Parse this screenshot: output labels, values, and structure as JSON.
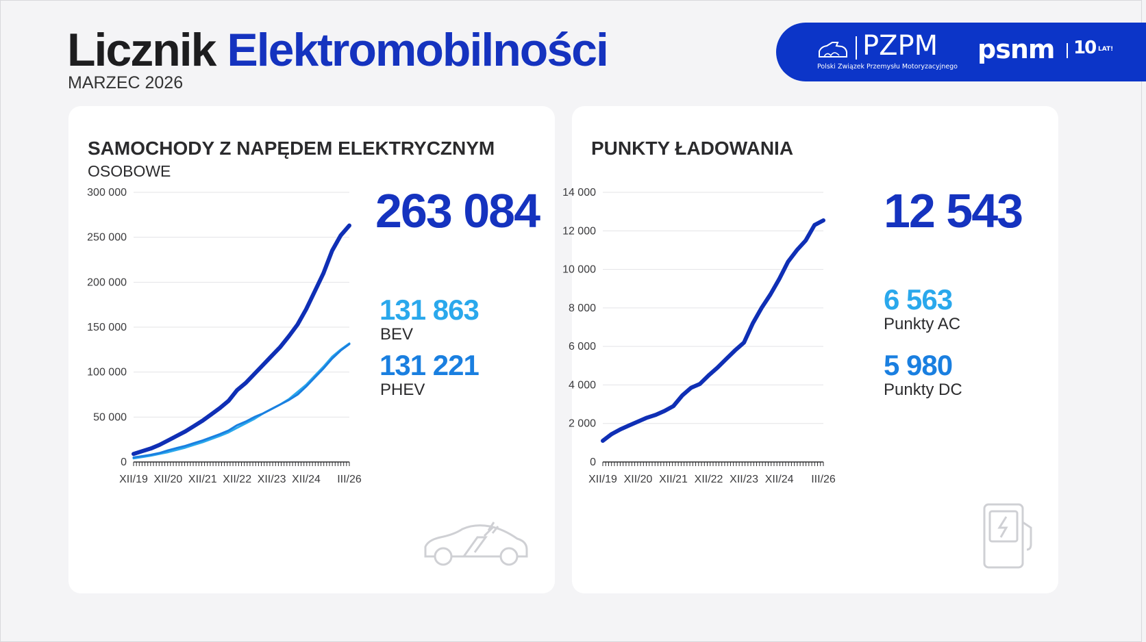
{
  "header": {
    "title_part1": "Licznik",
    "title_part2": "Elektromobilności",
    "subtitle": "MARZEC 2026"
  },
  "logos": {
    "pzpm_name": "PZPM",
    "pzpm_full": "Polski Związek Przemysłu Motoryzacyjnego",
    "psnm_name": "psnm",
    "psnm_badge": "10",
    "psnm_badge_suffix": "LAT!"
  },
  "colors": {
    "brand_blue": "#1533bf",
    "dark_blue": "#0f2fb5",
    "bev_blue": "#2aa8ec",
    "phev_blue": "#1a7fe0"
  },
  "cars_card": {
    "title": "SAMOCHODY Z NAPĘDEM ELEKTRYCZNYM",
    "subtitle": "OSOBOWE",
    "total": "263 084",
    "bev_value": "131 863",
    "bev_label": "BEV",
    "phev_value": "131 221",
    "phev_label": "PHEV",
    "icon": "electric-car-icon"
  },
  "charging_card": {
    "title": "PUNKTY ŁADOWANIA",
    "total": "12 543",
    "ac_value": "6 563",
    "ac_label": "Punkty AC",
    "dc_value": "5 980",
    "dc_label": "Punkty DC",
    "icon": "charging-station-icon"
  },
  "chart_data": [
    {
      "type": "line",
      "x": [
        "XII/19",
        "III/20",
        "VI/20",
        "IX/20",
        "XII/20",
        "III/21",
        "VI/21",
        "IX/21",
        "XII/21",
        "III/22",
        "VI/22",
        "IX/22",
        "XII/22",
        "III/23",
        "VI/23",
        "IX/23",
        "XII/23",
        "III/24",
        "VI/24",
        "IX/24",
        "XII/24",
        "III/25",
        "VI/25",
        "IX/25",
        "XII/25",
        "III/26"
      ],
      "x_tick_labels": [
        "XII/19",
        "XII/20",
        "XII/21",
        "XII/22",
        "XII/23",
        "XII/24",
        "III/26"
      ],
      "y_ticks": [
        0,
        50000,
        100000,
        150000,
        200000,
        250000,
        300000
      ],
      "y_tick_labels": [
        "0",
        "50 000",
        "100 000",
        "150 000",
        "200 000",
        "250 000",
        "300 000"
      ],
      "ylim": [
        0,
        300000
      ],
      "grid": true,
      "series": [
        {
          "key": "total",
          "color": "#0f2fb5",
          "values": [
            9000,
            12000,
            15000,
            19000,
            24000,
            29000,
            34000,
            40000,
            46000,
            53000,
            60000,
            68000,
            80000,
            88000,
            98000,
            108000,
            118000,
            128000,
            140000,
            153000,
            170000,
            190000,
            210000,
            235000,
            252000,
            263084
          ]
        },
        {
          "key": "bev",
          "color": "#2aa8ec",
          "values": [
            4000,
            5500,
            7000,
            9000,
            11000,
            13500,
            16000,
            19000,
            22000,
            25500,
            29000,
            33000,
            38000,
            43000,
            48000,
            54000,
            59000,
            64000,
            70000,
            78000,
            86000,
            96000,
            106000,
            117000,
            125000,
            131863
          ]
        },
        {
          "key": "phev",
          "color": "#1a7fe0",
          "values": [
            5000,
            6500,
            8000,
            10000,
            13000,
            15500,
            18000,
            21000,
            24000,
            27500,
            31000,
            35000,
            41000,
            45000,
            50000,
            54000,
            59000,
            64000,
            69000,
            75000,
            84000,
            94000,
            104000,
            115000,
            124000,
            131221
          ]
        }
      ]
    },
    {
      "type": "line",
      "x": [
        "XII/19",
        "III/20",
        "VI/20",
        "IX/20",
        "XII/20",
        "III/21",
        "VI/21",
        "IX/21",
        "XII/21",
        "III/22",
        "VI/22",
        "IX/22",
        "XII/22",
        "III/23",
        "VI/23",
        "IX/23",
        "XII/23",
        "III/24",
        "VI/24",
        "IX/24",
        "XII/24",
        "III/25",
        "VI/25",
        "IX/25",
        "XII/25",
        "III/26"
      ],
      "x_tick_labels": [
        "XII/19",
        "XII/20",
        "XII/21",
        "XII/22",
        "XII/23",
        "XII/24",
        "III/26"
      ],
      "y_ticks": [
        0,
        2000,
        4000,
        6000,
        8000,
        10000,
        12000,
        14000
      ],
      "y_tick_labels": [
        "0",
        "2 000",
        "4 000",
        "6 000",
        "8 000",
        "10 000",
        "12 000",
        "14 000"
      ],
      "ylim": [
        0,
        14000
      ],
      "grid": true,
      "series": [
        {
          "key": "charging_points",
          "color": "#0f2fb5",
          "values": [
            1100,
            1450,
            1700,
            1900,
            2100,
            2300,
            2450,
            2650,
            2900,
            3450,
            3850,
            4050,
            4500,
            4900,
            5350,
            5800,
            6200,
            7200,
            8000,
            8700,
            9500,
            10400,
            11000,
            11500,
            12300,
            12543
          ]
        }
      ]
    }
  ]
}
